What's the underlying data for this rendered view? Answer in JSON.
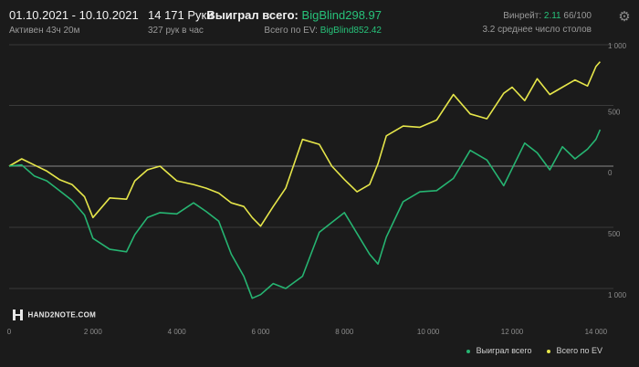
{
  "header": {
    "date_range": "01.10.2021 - 10.10.2021",
    "active_time": "Активен 43ч 20м",
    "hands": "14 171 Руки",
    "hands_per_hour": "327 рук в час",
    "won_label": "Выиграл всего:",
    "won_value": "BigBlind298.97",
    "ev_label": "Всего по EV:",
    "ev_value": "BigBlind852.42",
    "winrate_label": "Винрейт:",
    "winrate_value": "2.11",
    "winrate_extra": "66/100",
    "tables": "3.2 среднее число столов",
    "settings_icon": "gear-icon"
  },
  "logo": {
    "text": "HAND2NOTE.COM"
  },
  "chart_data": {
    "type": "line",
    "xlim": [
      0,
      14200
    ],
    "ylim": [
      -1300,
      1000
    ],
    "x_ticks": [
      "0",
      "2 000",
      "4 000",
      "6 000",
      "8 000",
      "10 000",
      "12 000",
      "14 000"
    ],
    "y_ticks": [
      "1 000",
      "500",
      "0",
      "500",
      "1 000"
    ],
    "y_tick_values": [
      1000,
      500,
      0,
      -500,
      -1000
    ],
    "grid": true,
    "legend": "bottom-right",
    "series": [
      {
        "name": "Выиграл всего",
        "color": "#26b572",
        "x": [
          0,
          300,
          600,
          900,
          1200,
          1500,
          1800,
          2000,
          2400,
          2800,
          3000,
          3300,
          3600,
          4000,
          4400,
          4700,
          5000,
          5300,
          5600,
          5800,
          6000,
          6300,
          6600,
          7000,
          7400,
          7700,
          8000,
          8300,
          8600,
          8800,
          9000,
          9400,
          9800,
          10200,
          10600,
          11000,
          11400,
          11800,
          12000,
          12300,
          12600,
          12900,
          13200,
          13500,
          13800,
          14000,
          14100
        ],
        "y": [
          0,
          10,
          -80,
          -120,
          -200,
          -280,
          -400,
          -590,
          -680,
          -700,
          -560,
          -420,
          -380,
          -390,
          -300,
          -370,
          -450,
          -720,
          -900,
          -1080,
          -1050,
          -960,
          -1000,
          -900,
          -540,
          -460,
          -380,
          -550,
          -720,
          -800,
          -580,
          -290,
          -210,
          -200,
          -100,
          130,
          50,
          -160,
          -20,
          190,
          110,
          -30,
          160,
          60,
          140,
          220,
          300
        ]
      },
      {
        "name": "Всего по EV",
        "color": "#e6e64a",
        "x": [
          0,
          300,
          600,
          900,
          1200,
          1500,
          1800,
          2000,
          2400,
          2800,
          3000,
          3300,
          3600,
          4000,
          4400,
          4700,
          5000,
          5300,
          5600,
          5800,
          6000,
          6300,
          6600,
          7000,
          7400,
          7700,
          8000,
          8300,
          8600,
          8800,
          9000,
          9400,
          9800,
          10200,
          10600,
          11000,
          11400,
          11800,
          12000,
          12300,
          12600,
          12900,
          13200,
          13500,
          13800,
          14000,
          14100
        ],
        "y": [
          0,
          60,
          10,
          -40,
          -110,
          -150,
          -250,
          -420,
          -260,
          -270,
          -120,
          -30,
          0,
          -120,
          -150,
          -180,
          -220,
          -300,
          -330,
          -420,
          -490,
          -330,
          -180,
          220,
          180,
          0,
          -110,
          -210,
          -150,
          20,
          250,
          330,
          320,
          380,
          590,
          430,
          390,
          600,
          650,
          540,
          720,
          590,
          650,
          710,
          660,
          820,
          860
        ]
      }
    ]
  }
}
